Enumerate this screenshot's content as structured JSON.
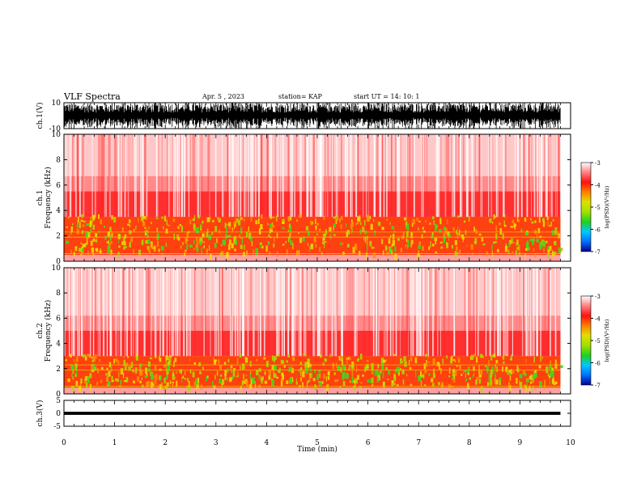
{
  "header": {
    "title": "VLF Spectra",
    "date": "Apr. 5 , 2023",
    "station": "station= KAP",
    "start": "start UT = 14: 10: 1"
  },
  "colorbar": {
    "label": "log(PSD)(V²/Hz)",
    "ticks": [
      "-3",
      "-4",
      "-5",
      "-6",
      "-7"
    ],
    "range": [
      -7,
      -3
    ],
    "colors": [
      "#000090",
      "#0070ff",
      "#00c8ff",
      "#20d020",
      "#a0e000",
      "#e0e000",
      "#ff8000",
      "#ff1010",
      "#ff8080",
      "#ffffff"
    ]
  },
  "chart_data": [
    {
      "type": "line",
      "name": "ch1-waveform",
      "ylabel": "ch.1(V)",
      "ylim": [
        -10,
        10
      ],
      "yticks": [
        "10",
        "-10"
      ],
      "xlim": [
        0,
        10
      ],
      "x_end": 9.8,
      "description_values": {
        "amplitude_typical": 8
      }
    },
    {
      "type": "heatmap",
      "name": "ch1-spectrogram",
      "ylabel": "ch.1\nFrequency (kHz)",
      "ylim": [
        0,
        10
      ],
      "yticks": [
        "0",
        "2",
        "4",
        "6",
        "8",
        "10"
      ],
      "xlim": [
        0,
        10
      ],
      "x_end": 9.8,
      "band_low_kHz": [
        1,
        3.5
      ],
      "band_mid_kHz": [
        3.5,
        5.5
      ]
    },
    {
      "type": "heatmap",
      "name": "ch2-spectrogram",
      "ylabel": "ch.2\nFrequency (kHz)",
      "ylim": [
        0,
        10
      ],
      "yticks": [
        "0",
        "2",
        "4",
        "6",
        "8",
        "10"
      ],
      "xlim": [
        0,
        10
      ],
      "x_end": 9.8,
      "band_low_kHz": [
        1,
        3
      ],
      "band_mid_kHz": [
        3,
        5
      ]
    },
    {
      "type": "line",
      "name": "ch3-waveform",
      "ylabel": "ch.3(V)",
      "ylim": [
        -5,
        5
      ],
      "yticks": [
        "5",
        "0",
        "-5"
      ],
      "xlim": [
        0,
        10
      ],
      "x_end": 9.8,
      "description_values": {
        "amplitude_typical": 0.6
      }
    }
  ],
  "xaxis": {
    "label": "Time (min)",
    "ticks": [
      "0",
      "1",
      "2",
      "3",
      "4",
      "5",
      "6",
      "7",
      "8",
      "9",
      "10"
    ]
  }
}
